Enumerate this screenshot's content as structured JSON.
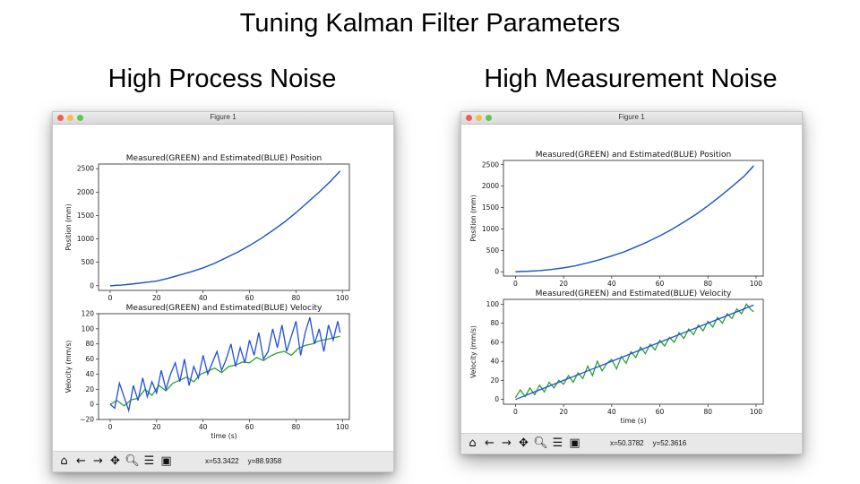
{
  "slide": {
    "title": "Tuning Kalman Filter Parameters",
    "left_heading": "High Process Noise",
    "right_heading": "High Measurement Noise"
  },
  "windows": [
    {
      "title": "Figure 1",
      "coords": {
        "x": "x=53.3422",
        "y": "y=88.9358"
      },
      "toolbar": [
        "home-icon",
        "back-arrow-icon",
        "forward-arrow-icon",
        "pan-icon",
        "zoom-icon",
        "configure-icon",
        "save-icon"
      ]
    },
    {
      "title": "Figure 1",
      "coords": {
        "x": "x=50.3782",
        "y": "y=52.3616"
      },
      "toolbar": [
        "home-icon",
        "back-arrow-icon",
        "forward-arrow-icon",
        "pan-icon",
        "zoom-icon",
        "configure-icon",
        "save-icon"
      ]
    }
  ],
  "colors": {
    "measured": "#2ca02c",
    "estimated": "#1f4fdb"
  },
  "chart_data": [
    {
      "type": "line",
      "title": "Measured(GREEN) and Estimated(BLUE) Position",
      "xlabel": "",
      "ylabel": "Position (mm)",
      "xlim": [
        -5,
        103
      ],
      "ylim": [
        -100,
        2600
      ],
      "xticks": [
        "0",
        "20",
        "40",
        "60",
        "80",
        "100"
      ],
      "yticks": [
        "0",
        "500",
        "1000",
        "1500",
        "2000",
        "2500"
      ],
      "series": [
        {
          "name": "Measured(GREEN)",
          "color": "#2ca02c",
          "x": [
            0,
            5,
            10,
            15,
            20,
            25,
            30,
            35,
            40,
            45,
            50,
            55,
            60,
            65,
            70,
            75,
            80,
            85,
            90,
            95,
            99
          ],
          "y": [
            0,
            15,
            40,
            70,
            100,
            160,
            230,
            300,
            380,
            480,
            600,
            720,
            860,
            1010,
            1180,
            1360,
            1560,
            1780,
            2000,
            2240,
            2450
          ]
        },
        {
          "name": "Estimated(BLUE)",
          "color": "#1f4fdb",
          "x": [
            0,
            5,
            10,
            15,
            20,
            25,
            30,
            35,
            40,
            45,
            50,
            55,
            60,
            65,
            70,
            75,
            80,
            85,
            90,
            95,
            99
          ],
          "y": [
            0,
            14,
            40,
            70,
            100,
            158,
            228,
            300,
            380,
            478,
            598,
            720,
            858,
            1010,
            1180,
            1358,
            1560,
            1778,
            2000,
            2238,
            2448
          ]
        }
      ]
    },
    {
      "type": "line",
      "title": "Measured(GREEN) and Estimated(BLUE) Velocity",
      "xlabel": "time (s)",
      "ylabel": "Velocity (mm/s)",
      "xlim": [
        -5,
        103
      ],
      "ylim": [
        -20,
        120
      ],
      "xticks": [
        "0",
        "20",
        "40",
        "60",
        "80",
        "100"
      ],
      "yticks": [
        "−20",
        "0",
        "20",
        "40",
        "60",
        "80",
        "100",
        "120"
      ],
      "series": [
        {
          "name": "Measured(GREEN)",
          "color": "#2ca02c",
          "x": [
            0,
            3,
            6,
            9,
            12,
            15,
            18,
            21,
            24,
            27,
            30,
            33,
            36,
            39,
            42,
            45,
            48,
            51,
            54,
            57,
            60,
            63,
            66,
            69,
            72,
            75,
            78,
            81,
            84,
            87,
            90,
            93,
            96,
            99
          ],
          "y": [
            0,
            5,
            -2,
            6,
            8,
            20,
            12,
            25,
            18,
            28,
            32,
            36,
            30,
            40,
            44,
            48,
            42,
            50,
            52,
            56,
            55,
            62,
            58,
            64,
            68,
            70,
            65,
            74,
            78,
            80,
            84,
            86,
            88,
            90
          ]
        },
        {
          "name": "Estimated(BLUE)",
          "color": "#1f4fdb",
          "x": [
            0,
            2,
            4,
            6,
            8,
            10,
            12,
            14,
            16,
            18,
            20,
            22,
            24,
            26,
            28,
            30,
            32,
            34,
            36,
            38,
            40,
            42,
            44,
            46,
            48,
            50,
            52,
            54,
            56,
            58,
            60,
            62,
            64,
            66,
            68,
            70,
            72,
            74,
            76,
            78,
            80,
            82,
            84,
            86,
            88,
            90,
            92,
            94,
            96,
            98,
            99
          ],
          "y": [
            0,
            -5,
            28,
            10,
            -8,
            25,
            5,
            35,
            10,
            30,
            15,
            45,
            20,
            40,
            55,
            30,
            60,
            25,
            50,
            35,
            65,
            40,
            55,
            70,
            45,
            60,
            80,
            50,
            75,
            55,
            85,
            65,
            95,
            60,
            70,
            100,
            75,
            105,
            70,
            90,
            110,
            65,
            95,
            115,
            80,
            100,
            70,
            105,
            85,
            110,
            95
          ]
        }
      ]
    },
    {
      "type": "line",
      "title": "Measured(GREEN) and Estimated(BLUE) Position",
      "xlabel": "",
      "ylabel": "Position (mm)",
      "xlim": [
        -5,
        103
      ],
      "ylim": [
        -100,
        2600
      ],
      "xticks": [
        "0",
        "20",
        "40",
        "60",
        "80",
        "100"
      ],
      "yticks": [
        "0",
        "500",
        "1000",
        "1500",
        "2000",
        "2500"
      ],
      "series": [
        {
          "name": "Measured(GREEN)",
          "color": "#2ca02c",
          "x": [
            0,
            5,
            10,
            15,
            20,
            25,
            30,
            35,
            40,
            45,
            50,
            55,
            60,
            65,
            70,
            75,
            80,
            85,
            90,
            95,
            99
          ],
          "y": [
            0,
            10,
            25,
            55,
            90,
            140,
            210,
            280,
            370,
            460,
            580,
            700,
            840,
            990,
            1160,
            1340,
            1540,
            1760,
            1990,
            2230,
            2480
          ]
        },
        {
          "name": "Estimated(BLUE)",
          "color": "#1f4fdb",
          "x": [
            0,
            5,
            10,
            15,
            20,
            25,
            30,
            35,
            40,
            45,
            50,
            55,
            60,
            65,
            70,
            75,
            80,
            85,
            90,
            95,
            99
          ],
          "y": [
            0,
            12,
            28,
            55,
            92,
            140,
            208,
            280,
            368,
            462,
            578,
            702,
            838,
            990,
            1160,
            1338,
            1540,
            1758,
            1990,
            2228,
            2470
          ]
        }
      ]
    },
    {
      "type": "line",
      "title": "Measured(GREEN) and Estimated(BLUE) Velocity",
      "xlabel": "time (s)",
      "ylabel": "Velocity (mm/s)",
      "xlim": [
        -5,
        103
      ],
      "ylim": [
        -5,
        105
      ],
      "xticks": [
        "0",
        "20",
        "40",
        "60",
        "80",
        "100"
      ],
      "yticks": [
        "0",
        "20",
        "40",
        "60",
        "80",
        "100"
      ],
      "series": [
        {
          "name": "Measured(GREEN)",
          "color": "#2ca02c",
          "x": [
            0,
            2,
            4,
            6,
            8,
            10,
            12,
            14,
            16,
            18,
            20,
            22,
            24,
            26,
            28,
            30,
            32,
            34,
            36,
            38,
            40,
            42,
            44,
            46,
            48,
            50,
            52,
            54,
            56,
            58,
            60,
            62,
            64,
            66,
            68,
            70,
            72,
            74,
            76,
            78,
            80,
            82,
            84,
            86,
            88,
            90,
            92,
            94,
            96,
            98,
            99
          ],
          "y": [
            2,
            10,
            3,
            12,
            5,
            15,
            8,
            18,
            12,
            20,
            16,
            25,
            18,
            28,
            22,
            35,
            25,
            40,
            30,
            38,
            42,
            32,
            45,
            38,
            50,
            44,
            55,
            48,
            58,
            52,
            62,
            56,
            65,
            60,
            70,
            64,
            74,
            68,
            78,
            72,
            82,
            76,
            86,
            80,
            90,
            85,
            95,
            90,
            100,
            94,
            92
          ]
        },
        {
          "name": "Estimated(BLUE)",
          "color": "#1f4fdb",
          "x": [
            0,
            10,
            20,
            30,
            40,
            50,
            60,
            70,
            80,
            90,
            99
          ],
          "y": [
            0,
            10,
            20,
            30,
            40,
            50,
            60,
            70,
            80,
            90,
            99
          ]
        }
      ]
    }
  ]
}
